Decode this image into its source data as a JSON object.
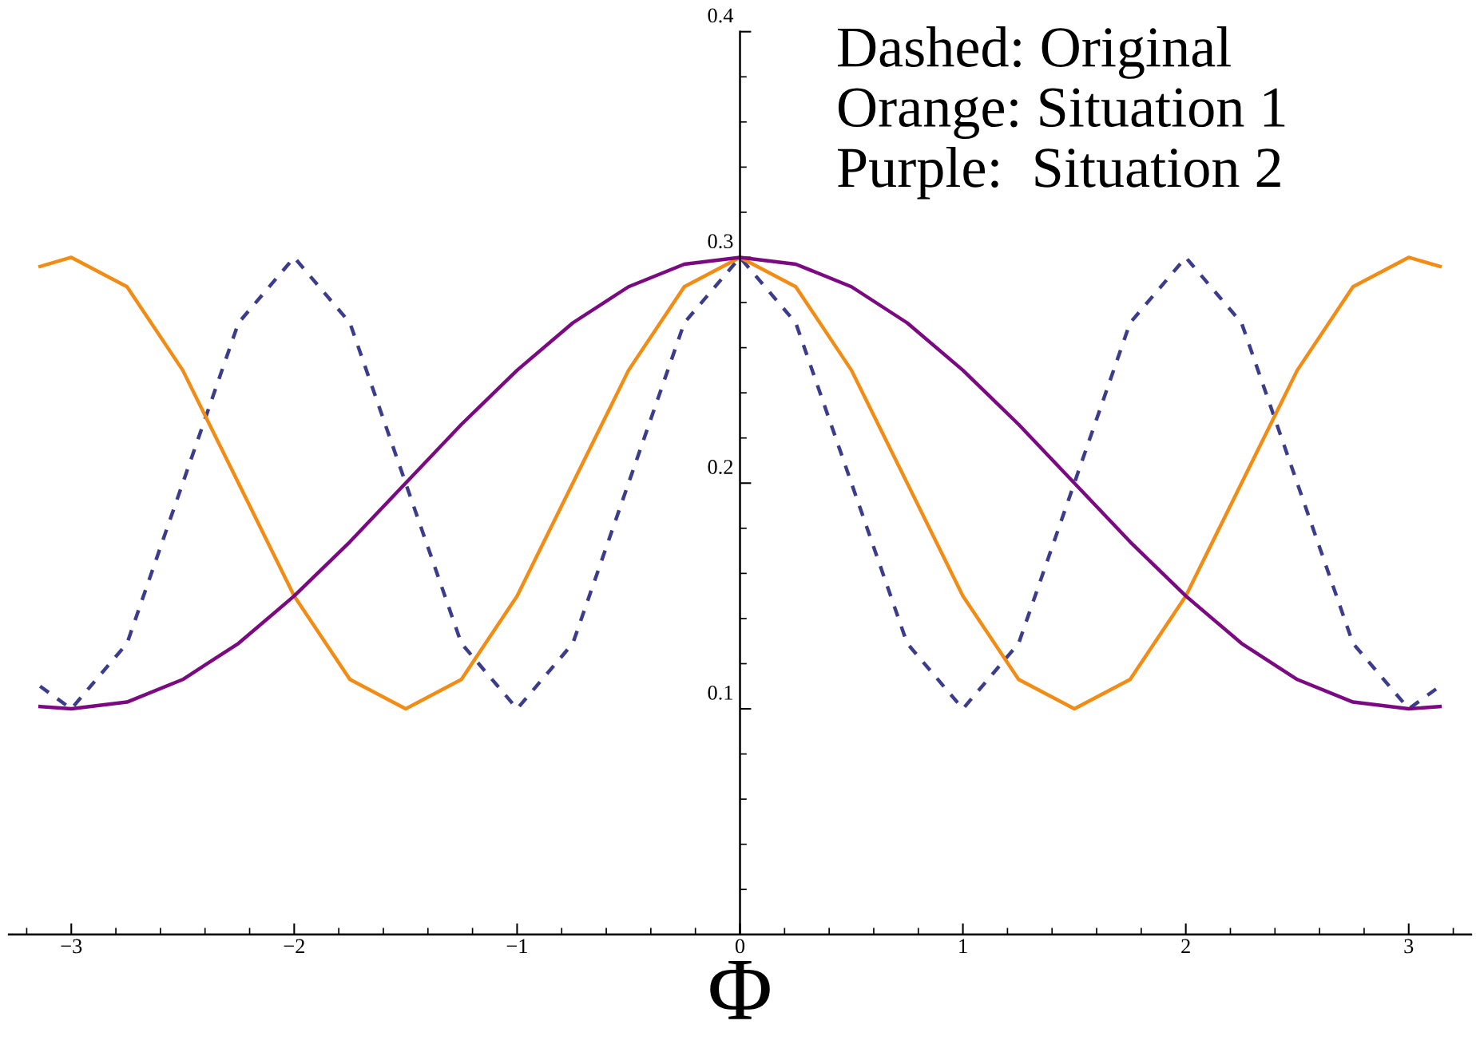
{
  "chart_data": {
    "type": "line",
    "xlabel": "Φ",
    "x": [
      -3.14,
      -3,
      -2.75,
      -2.5,
      -2.25,
      -2,
      -1.75,
      -1.5,
      -1.25,
      -1,
      -0.75,
      -0.5,
      -0.25,
      0,
      0.25,
      0.5,
      0.75,
      1,
      1.25,
      1.5,
      1.75,
      2,
      2.25,
      2.5,
      2.75,
      3,
      3.14
    ],
    "series": [
      {
        "color": "#3c3c8c",
        "line_style": "dashed",
        "values": [
          0.11,
          0.1,
          0.129,
          0.2,
          0.271,
          0.3,
          0.271,
          0.2,
          0.129,
          0.1,
          0.129,
          0.2,
          0.271,
          0.3,
          0.271,
          0.2,
          0.129,
          0.1,
          0.129,
          0.2,
          0.271,
          0.3,
          0.271,
          0.2,
          0.129,
          0.1,
          0.11
        ]
      },
      {
        "color": "#f28c14",
        "line_style": "solid",
        "values": [
          0.296,
          0.3,
          0.287,
          0.25,
          0.2,
          0.15,
          0.113,
          0.1,
          0.113,
          0.15,
          0.2,
          0.25,
          0.287,
          0.3,
          0.287,
          0.25,
          0.2,
          0.15,
          0.113,
          0.1,
          0.113,
          0.15,
          0.2,
          0.25,
          0.287,
          0.3,
          0.296
        ]
      },
      {
        "color": "#7b0a82",
        "line_style": "solid",
        "values": [
          0.101,
          0.1,
          0.103,
          0.113,
          0.129,
          0.15,
          0.174,
          0.2,
          0.226,
          0.25,
          0.271,
          0.287,
          0.297,
          0.3,
          0.297,
          0.287,
          0.271,
          0.25,
          0.226,
          0.2,
          0.174,
          0.15,
          0.129,
          0.113,
          0.103,
          0.1,
          0.101
        ]
      }
    ],
    "xlim": [
      -3.28,
      3.28
    ],
    "ylim": [
      0,
      0.4
    ],
    "xticks": [
      {
        "value": -3,
        "label": "−3"
      },
      {
        "value": -2,
        "label": "−2"
      },
      {
        "value": -1,
        "label": "−1"
      },
      0,
      1,
      2,
      3,
      {
        "value": -3.2,
        "label": null
      },
      {
        "value": -2.8,
        "label": null
      },
      {
        "value": -2.6,
        "label": null
      },
      {
        "value": -2.4,
        "label": null
      },
      {
        "value": -2.2,
        "label": null
      },
      {
        "value": -1.8,
        "label": null
      },
      {
        "value": -1.6,
        "label": null
      },
      {
        "value": -1.4,
        "label": null
      },
      {
        "value": -1.2,
        "label": null
      },
      {
        "value": -0.8,
        "label": null
      },
      {
        "value": -0.6,
        "label": null
      },
      {
        "value": -0.4,
        "label": null
      },
      {
        "value": -0.2,
        "label": null
      },
      {
        "value": 0.2,
        "label": null
      },
      {
        "value": 0.4,
        "label": null
      },
      {
        "value": 0.6,
        "label": null
      },
      {
        "value": 0.8,
        "label": null
      },
      {
        "value": 1.2,
        "label": null
      },
      {
        "value": 1.4,
        "label": null
      },
      {
        "value": 1.6,
        "label": null
      },
      {
        "value": 1.8,
        "label": null
      },
      {
        "value": 2.2,
        "label": null
      },
      {
        "value": 2.4,
        "label": null
      },
      {
        "value": 2.6,
        "label": null
      },
      {
        "value": 2.8,
        "label": null
      },
      {
        "value": 3.2,
        "label": null
      }
    ],
    "yticks": [
      0.1,
      0.2,
      0.3,
      0.4,
      {
        "value": 0.02,
        "label": null
      },
      {
        "value": 0.04,
        "label": null
      },
      {
        "value": 0.06,
        "label": null
      },
      {
        "value": 0.08,
        "label": null
      },
      {
        "value": 0.12,
        "label": null
      },
      {
        "value": 0.14,
        "label": null
      },
      {
        "value": 0.16,
        "label": null
      },
      {
        "value": 0.18,
        "label": null
      },
      {
        "value": 0.22,
        "label": null
      },
      {
        "value": 0.24,
        "label": null
      },
      {
        "value": 0.26,
        "label": null
      },
      {
        "value": 0.28,
        "label": null
      },
      {
        "value": 0.32,
        "label": null
      },
      {
        "value": 0.34,
        "label": null
      },
      {
        "value": 0.36,
        "label": null
      },
      {
        "value": 0.38,
        "label": null
      }
    ],
    "annotations": [
      "Dashed: Original",
      "Orange: Situation 1",
      "Purple:  Situation 2"
    ],
    "grid": false,
    "legend": false
  }
}
